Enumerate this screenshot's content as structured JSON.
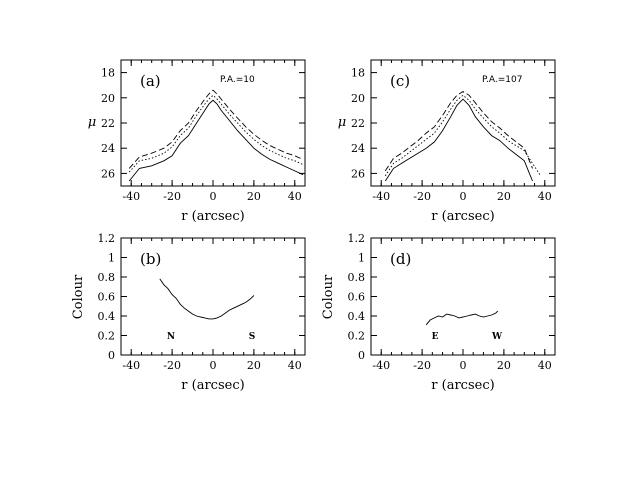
{
  "chart_data": [
    {
      "type": "line",
      "panel_label": "(a)",
      "annotation": "P.A.=10",
      "xlabel": "r (arcsec)",
      "ylabel": "μ",
      "xlim": [
        -45,
        45
      ],
      "ylim": [
        27,
        17
      ],
      "y_inverted": true,
      "x_ticks": [
        -40,
        -20,
        0,
        20,
        40
      ],
      "y_ticks": [
        18,
        20,
        22,
        24,
        26
      ],
      "series": [
        {
          "style": "solid",
          "x": [
            -41,
            -36,
            -30,
            -24,
            -20,
            -16,
            -12,
            -8,
            -4,
            -2,
            0,
            2,
            4,
            8,
            12,
            16,
            20,
            24,
            28,
            32,
            36,
            40,
            44
          ],
          "y": [
            26.6,
            25.6,
            25.4,
            25.0,
            24.6,
            23.6,
            23.0,
            22.0,
            21.0,
            20.5,
            20.2,
            20.5,
            21.0,
            21.8,
            22.6,
            23.3,
            24.0,
            24.5,
            24.9,
            25.2,
            25.5,
            25.8,
            26.1
          ]
        },
        {
          "style": "dashed",
          "x": [
            -41,
            -36,
            -30,
            -24,
            -20,
            -16,
            -12,
            -8,
            -4,
            -2,
            0,
            2,
            4,
            8,
            12,
            16,
            20,
            24,
            28,
            32,
            36,
            40,
            44
          ],
          "y": [
            25.6,
            24.7,
            24.4,
            24.0,
            23.5,
            22.6,
            22.0,
            21.0,
            20.1,
            19.7,
            19.4,
            19.7,
            20.1,
            20.9,
            21.6,
            22.3,
            22.9,
            23.4,
            23.8,
            24.1,
            24.4,
            24.6,
            24.9
          ]
        },
        {
          "style": "dotted",
          "x": [
            -41,
            -36,
            -30,
            -24,
            -20,
            -16,
            -12,
            -8,
            -4,
            -2,
            0,
            2,
            4,
            8,
            12,
            16,
            20,
            24,
            28,
            32,
            36,
            40,
            44
          ],
          "y": [
            25.9,
            25.0,
            24.8,
            24.4,
            23.9,
            23.0,
            22.4,
            21.4,
            20.5,
            20.1,
            19.8,
            20.1,
            20.5,
            21.3,
            22.0,
            22.7,
            23.3,
            23.8,
            24.2,
            24.5,
            24.8,
            25.0,
            25.3
          ]
        }
      ]
    },
    {
      "type": "line",
      "panel_label": "(c)",
      "annotation": "P.A.=107",
      "xlabel": "r (arcsec)",
      "ylabel": "μ",
      "xlim": [
        -45,
        45
      ],
      "ylim": [
        27,
        17
      ],
      "y_inverted": true,
      "x_ticks": [
        -40,
        -20,
        0,
        20,
        40
      ],
      "y_ticks": [
        18,
        20,
        22,
        24,
        26
      ],
      "series": [
        {
          "style": "solid",
          "x": [
            -38,
            -34,
            -30,
            -26,
            -22,
            -18,
            -14,
            -10,
            -6,
            -3,
            0,
            3,
            6,
            10,
            14,
            18,
            22,
            26,
            30,
            32,
            34
          ],
          "y": [
            26.6,
            25.6,
            25.2,
            24.8,
            24.4,
            24.0,
            23.5,
            22.6,
            21.5,
            20.6,
            20.1,
            20.6,
            21.5,
            22.3,
            23.0,
            23.4,
            24.0,
            24.5,
            25.0,
            25.8,
            26.6
          ]
        },
        {
          "style": "dashed",
          "x": [
            -38,
            -34,
            -30,
            -26,
            -22,
            -18,
            -14,
            -10,
            -6,
            -3,
            0,
            3,
            6,
            10,
            14,
            18,
            22,
            26,
            30,
            32,
            34
          ],
          "y": [
            25.8,
            24.8,
            24.4,
            23.9,
            23.4,
            22.8,
            22.3,
            21.4,
            20.4,
            19.8,
            19.5,
            19.8,
            20.4,
            21.2,
            21.9,
            22.4,
            23.0,
            23.5,
            24.0,
            24.8,
            25.6
          ]
        },
        {
          "style": "dotted",
          "x": [
            -38,
            -34,
            -30,
            -26,
            -22,
            -18,
            -14,
            -10,
            -6,
            -3,
            0,
            3,
            6,
            10,
            14,
            18,
            22,
            26,
            30,
            34,
            38
          ],
          "y": [
            26.2,
            25.2,
            24.8,
            24.3,
            23.8,
            23.3,
            22.8,
            21.9,
            20.9,
            20.2,
            19.8,
            20.2,
            20.9,
            21.6,
            22.3,
            22.8,
            23.4,
            23.8,
            24.2,
            25.2,
            26.2
          ]
        }
      ]
    },
    {
      "type": "line",
      "panel_label": "(b)",
      "xlabel": "r (arcsec)",
      "ylabel": "Colour",
      "xlim": [
        -45,
        45
      ],
      "ylim": [
        0,
        1.2
      ],
      "x_ticks": [
        -40,
        -20,
        0,
        20,
        40
      ],
      "y_ticks": [
        0,
        0.2,
        0.4,
        0.6,
        0.8,
        1,
        1.2
      ],
      "side_labels": {
        "left": "N",
        "right": "S"
      },
      "series": [
        {
          "style": "solid",
          "x": [
            -26,
            -24,
            -22,
            -20,
            -18,
            -16,
            -14,
            -12,
            -10,
            -8,
            -6,
            -4,
            -2,
            0,
            2,
            4,
            6,
            8,
            10,
            12,
            14,
            16,
            18,
            20
          ],
          "y": [
            0.78,
            0.72,
            0.68,
            0.62,
            0.58,
            0.52,
            0.48,
            0.45,
            0.42,
            0.4,
            0.39,
            0.38,
            0.37,
            0.37,
            0.38,
            0.4,
            0.43,
            0.46,
            0.48,
            0.5,
            0.52,
            0.54,
            0.57,
            0.61
          ]
        }
      ]
    },
    {
      "type": "line",
      "panel_label": "(d)",
      "xlabel": "r (arcsec)",
      "ylabel": "Colour",
      "xlim": [
        -45,
        45
      ],
      "ylim": [
        0,
        1.2
      ],
      "x_ticks": [
        -40,
        -20,
        0,
        20,
        40
      ],
      "y_ticks": [
        0,
        0.2,
        0.4,
        0.6,
        0.8,
        1,
        1.2
      ],
      "side_labels": {
        "left": "E",
        "right": "W"
      },
      "series": [
        {
          "style": "solid",
          "x": [
            -18,
            -16,
            -14,
            -12,
            -10,
            -8,
            -6,
            -4,
            -2,
            0,
            2,
            4,
            6,
            8,
            10,
            12,
            14,
            16,
            17
          ],
          "y": [
            0.31,
            0.36,
            0.38,
            0.4,
            0.39,
            0.42,
            0.41,
            0.4,
            0.38,
            0.39,
            0.4,
            0.41,
            0.42,
            0.4,
            0.39,
            0.4,
            0.41,
            0.43,
            0.45
          ]
        }
      ]
    }
  ]
}
